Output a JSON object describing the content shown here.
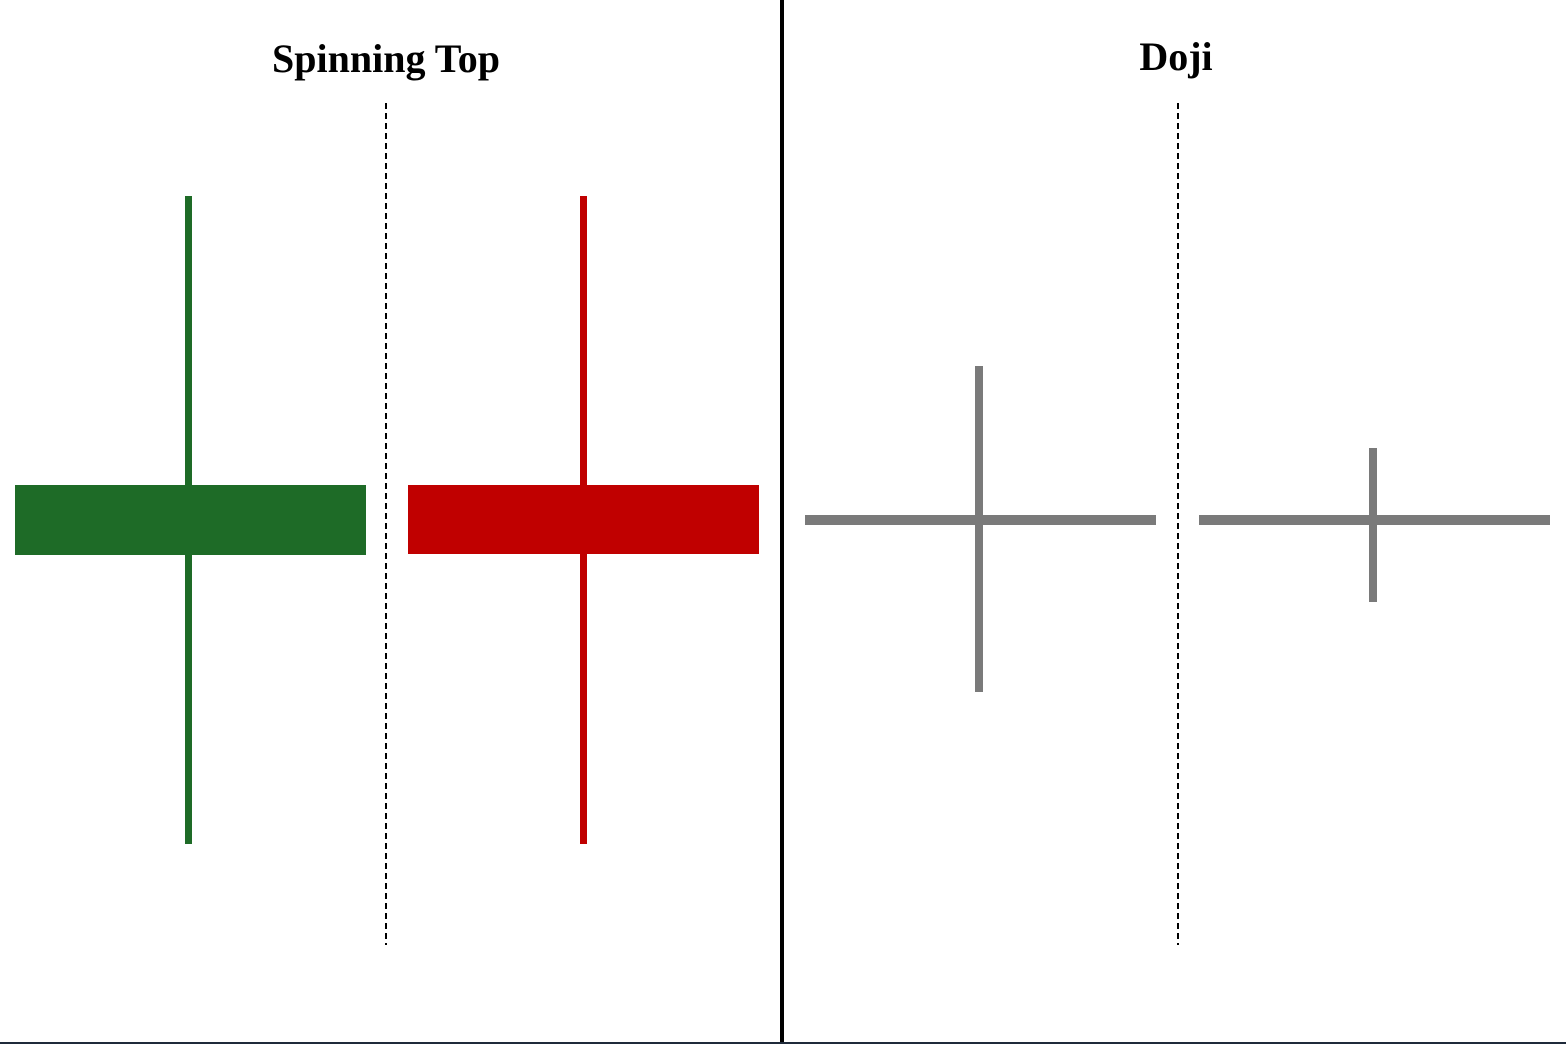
{
  "panels": [
    {
      "title": "Spinning Top"
    },
    {
      "title": "Doji"
    }
  ]
}
